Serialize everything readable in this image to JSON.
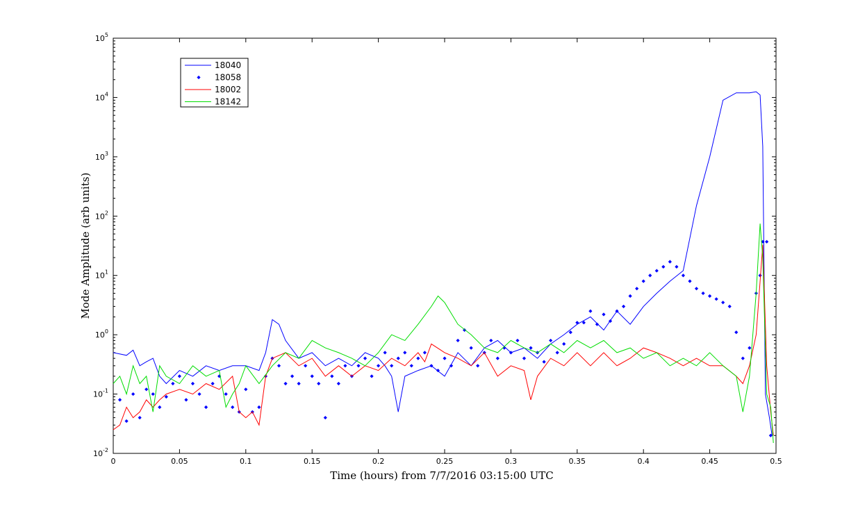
{
  "chart_data": {
    "type": "line",
    "title": "",
    "xlabel": "Time (hours) from 7/7/2016 03:15:00 UTC",
    "ylabel": "Mode Amplitude (arb units)",
    "xlim": [
      0,
      0.5
    ],
    "ylim": [
      0.01,
      100000
    ],
    "yscale": "log",
    "grid": false,
    "legend_position": "top-left",
    "x_ticks": [
      "0",
      "0.05",
      "0.1",
      "0.15",
      "0.2",
      "0.25",
      "0.3",
      "0.35",
      "0.4",
      "0.45",
      "0.5"
    ],
    "y_ticks": [
      {
        "base": "10",
        "exp": "-2"
      },
      {
        "base": "10",
        "exp": "-1"
      },
      {
        "base": "10",
        "exp": "0"
      },
      {
        "base": "10",
        "exp": "1"
      },
      {
        "base": "10",
        "exp": "2"
      },
      {
        "base": "10",
        "exp": "3"
      },
      {
        "base": "10",
        "exp": "4"
      },
      {
        "base": "10",
        "exp": "5"
      }
    ],
    "series": [
      {
        "name": "18040",
        "color": "#0000ff",
        "style": "line",
        "x": [
          0,
          0.01,
          0.015,
          0.02,
          0.025,
          0.03,
          0.035,
          0.04,
          0.05,
          0.06,
          0.07,
          0.08,
          0.09,
          0.1,
          0.11,
          0.115,
          0.12,
          0.125,
          0.13,
          0.14,
          0.15,
          0.16,
          0.17,
          0.18,
          0.19,
          0.2,
          0.205,
          0.21,
          0.215,
          0.22,
          0.23,
          0.24,
          0.25,
          0.26,
          0.27,
          0.28,
          0.29,
          0.3,
          0.31,
          0.32,
          0.33,
          0.34,
          0.35,
          0.36,
          0.37,
          0.38,
          0.39,
          0.4,
          0.41,
          0.42,
          0.43,
          0.44,
          0.45,
          0.46,
          0.47,
          0.48,
          0.485,
          0.488,
          0.49,
          0.492,
          0.495,
          0.497
        ],
        "y": [
          0.5,
          0.45,
          0.55,
          0.3,
          0.35,
          0.4,
          0.2,
          0.15,
          0.25,
          0.2,
          0.3,
          0.25,
          0.3,
          0.3,
          0.25,
          0.5,
          1.8,
          1.5,
          0.8,
          0.4,
          0.5,
          0.3,
          0.4,
          0.3,
          0.5,
          0.4,
          0.3,
          0.2,
          0.05,
          0.2,
          0.25,
          0.3,
          0.2,
          0.5,
          0.3,
          0.6,
          0.8,
          0.5,
          0.6,
          0.4,
          0.7,
          1.0,
          1.5,
          2.0,
          1.2,
          2.5,
          1.5,
          3.0,
          5.0,
          8.0,
          12.0,
          150.0,
          1000.0,
          9000.0,
          12000.0,
          12000.0,
          12500.0,
          11000.0,
          1500.0,
          0.1,
          0.04,
          0.02
        ]
      },
      {
        "name": "18058",
        "color": "#0000ff",
        "style": "markers",
        "x": [
          0.005,
          0.01,
          0.015,
          0.02,
          0.025,
          0.03,
          0.035,
          0.04,
          0.045,
          0.05,
          0.055,
          0.06,
          0.065,
          0.07,
          0.075,
          0.08,
          0.085,
          0.09,
          0.095,
          0.1,
          0.105,
          0.11,
          0.115,
          0.12,
          0.125,
          0.13,
          0.135,
          0.14,
          0.145,
          0.15,
          0.155,
          0.16,
          0.165,
          0.17,
          0.175,
          0.18,
          0.185,
          0.19,
          0.195,
          0.2,
          0.205,
          0.21,
          0.215,
          0.22,
          0.225,
          0.23,
          0.235,
          0.24,
          0.245,
          0.25,
          0.255,
          0.26,
          0.265,
          0.27,
          0.275,
          0.28,
          0.285,
          0.29,
          0.295,
          0.3,
          0.305,
          0.31,
          0.315,
          0.32,
          0.325,
          0.33,
          0.335,
          0.34,
          0.345,
          0.35,
          0.355,
          0.36,
          0.365,
          0.37,
          0.375,
          0.38,
          0.385,
          0.39,
          0.395,
          0.4,
          0.405,
          0.41,
          0.415,
          0.42,
          0.425,
          0.43,
          0.435,
          0.44,
          0.445,
          0.45,
          0.455,
          0.46,
          0.465,
          0.47,
          0.475,
          0.48,
          0.485,
          0.488,
          0.49,
          0.493,
          0.496
        ],
        "y": [
          0.08,
          0.035,
          0.1,
          0.04,
          0.12,
          0.1,
          0.06,
          0.09,
          0.15,
          0.2,
          0.08,
          0.15,
          0.1,
          0.06,
          0.15,
          0.2,
          0.1,
          0.06,
          0.05,
          0.12,
          0.05,
          0.06,
          0.2,
          0.4,
          0.3,
          0.15,
          0.2,
          0.15,
          0.3,
          0.2,
          0.15,
          0.04,
          0.2,
          0.15,
          0.3,
          0.2,
          0.3,
          0.4,
          0.2,
          0.3,
          0.5,
          0.3,
          0.4,
          0.5,
          0.3,
          0.4,
          0.5,
          0.3,
          0.25,
          0.4,
          0.3,
          0.8,
          1.2,
          0.6,
          0.3,
          0.5,
          0.8,
          0.4,
          0.6,
          0.5,
          0.8,
          0.4,
          0.6,
          0.5,
          0.35,
          0.8,
          0.5,
          0.7,
          1.1,
          1.6,
          1.6,
          2.5,
          1.5,
          2.2,
          1.7,
          2.5,
          3.0,
          4.5,
          6.0,
          8.0,
          10.0,
          12.0,
          14.0,
          17.0,
          14.0,
          10.0,
          8.0,
          6.0,
          5.0,
          4.5,
          4.0,
          3.5,
          3.0,
          1.1,
          0.4,
          0.6,
          5.0,
          10.0,
          37.0,
          37.0,
          0.02
        ]
      },
      {
        "name": "18002",
        "color": "#ff0000",
        "style": "line",
        "x": [
          0,
          0.005,
          0.01,
          0.015,
          0.02,
          0.025,
          0.03,
          0.035,
          0.04,
          0.05,
          0.06,
          0.07,
          0.08,
          0.09,
          0.095,
          0.1,
          0.105,
          0.11,
          0.115,
          0.12,
          0.13,
          0.14,
          0.15,
          0.16,
          0.17,
          0.18,
          0.19,
          0.2,
          0.21,
          0.22,
          0.23,
          0.235,
          0.24,
          0.25,
          0.26,
          0.27,
          0.28,
          0.29,
          0.3,
          0.31,
          0.315,
          0.32,
          0.33,
          0.34,
          0.35,
          0.36,
          0.37,
          0.38,
          0.39,
          0.4,
          0.41,
          0.42,
          0.43,
          0.44,
          0.45,
          0.46,
          0.47,
          0.475,
          0.48,
          0.485,
          0.488,
          0.49,
          0.493,
          0.496,
          0.498
        ],
        "y": [
          0.025,
          0.03,
          0.06,
          0.04,
          0.05,
          0.08,
          0.06,
          0.08,
          0.1,
          0.12,
          0.1,
          0.15,
          0.12,
          0.2,
          0.05,
          0.04,
          0.05,
          0.03,
          0.2,
          0.4,
          0.5,
          0.3,
          0.4,
          0.2,
          0.3,
          0.2,
          0.3,
          0.25,
          0.4,
          0.3,
          0.5,
          0.35,
          0.7,
          0.5,
          0.4,
          0.3,
          0.5,
          0.2,
          0.3,
          0.25,
          0.08,
          0.2,
          0.4,
          0.3,
          0.5,
          0.3,
          0.5,
          0.3,
          0.4,
          0.6,
          0.5,
          0.4,
          0.3,
          0.4,
          0.3,
          0.3,
          0.2,
          0.15,
          0.3,
          1.0,
          8.0,
          33.0,
          0.3,
          0.05,
          0.02
        ]
      },
      {
        "name": "18142",
        "color": "#00dd00",
        "style": "line",
        "x": [
          0,
          0.005,
          0.01,
          0.015,
          0.02,
          0.025,
          0.03,
          0.035,
          0.04,
          0.05,
          0.06,
          0.07,
          0.08,
          0.085,
          0.09,
          0.095,
          0.1,
          0.11,
          0.12,
          0.13,
          0.14,
          0.15,
          0.16,
          0.17,
          0.18,
          0.19,
          0.2,
          0.21,
          0.22,
          0.23,
          0.24,
          0.245,
          0.25,
          0.26,
          0.27,
          0.28,
          0.29,
          0.3,
          0.31,
          0.32,
          0.33,
          0.34,
          0.35,
          0.36,
          0.37,
          0.38,
          0.39,
          0.4,
          0.41,
          0.42,
          0.43,
          0.44,
          0.45,
          0.46,
          0.47,
          0.475,
          0.48,
          0.485,
          0.488,
          0.49,
          0.493,
          0.496,
          0.498
        ],
        "y": [
          0.15,
          0.2,
          0.1,
          0.3,
          0.15,
          0.2,
          0.05,
          0.3,
          0.2,
          0.15,
          0.3,
          0.2,
          0.25,
          0.06,
          0.1,
          0.15,
          0.3,
          0.15,
          0.3,
          0.5,
          0.4,
          0.8,
          0.6,
          0.5,
          0.4,
          0.3,
          0.5,
          1.0,
          0.8,
          1.5,
          3.0,
          4.5,
          3.5,
          1.5,
          1.0,
          0.6,
          0.5,
          0.8,
          0.6,
          0.5,
          0.7,
          0.5,
          0.8,
          0.6,
          0.8,
          0.5,
          0.6,
          0.4,
          0.5,
          0.3,
          0.4,
          0.3,
          0.5,
          0.3,
          0.2,
          0.05,
          0.2,
          5.0,
          75.0,
          20.0,
          0.1,
          0.06,
          0.015
        ]
      }
    ]
  }
}
